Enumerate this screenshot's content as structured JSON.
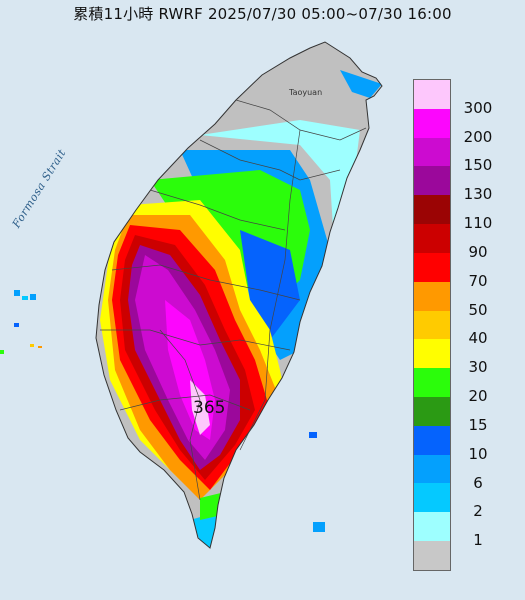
{
  "title": "累積11小時 RWRF 2025/07/30 05:00~07/30 16:00",
  "map_labels": {
    "strait": "Formosa Strait",
    "place": "Taoyuan",
    "peak_value": "365"
  },
  "legend": {
    "labels": [
      "300",
      "200",
      "150",
      "130",
      "110",
      "90",
      "70",
      "50",
      "40",
      "30",
      "20",
      "15",
      "10",
      "6",
      "2",
      "1"
    ],
    "colors": [
      "#fdc7fc",
      "#fc06fd",
      "#cc0bd0",
      "#9b089b",
      "#9b0404",
      "#cc0000",
      "#ff0000",
      "#ff9900",
      "#ffcb00",
      "#fffe00",
      "#2bfd0b",
      "#2b9a14",
      "#0563fd",
      "#04a0fd",
      "#05c9ff",
      "#9effff",
      "#c8c8c8"
    ]
  },
  "colors": {
    "sea": "#dbe8f2",
    "land_dry": "#bfbfbf"
  }
}
